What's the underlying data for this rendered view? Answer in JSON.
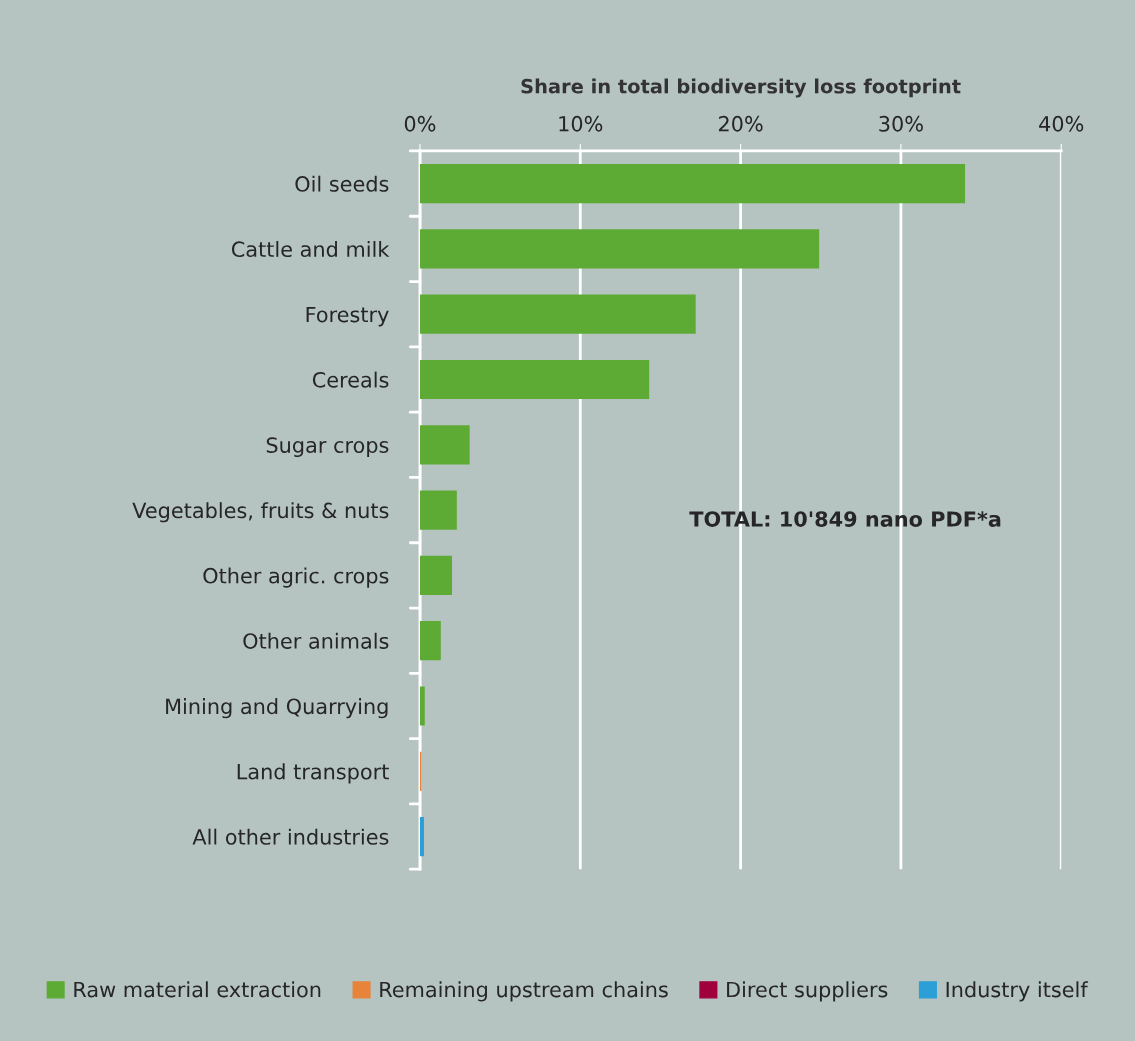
{
  "chart_data": {
    "type": "bar",
    "orientation": "horizontal",
    "xlabel": "Share in total biodiversity loss footprint",
    "categories": [
      "Oil seeds",
      "Cattle and milk",
      "Forestry",
      "Cereals",
      "Sugar crops",
      "Vegetables, fruits & nuts",
      "Other agric. crops",
      "Other animals",
      "Mining and Quarrying",
      "Land transport",
      "All other industries"
    ],
    "series": [
      {
        "name": "Raw material extraction",
        "color": "#5dab35",
        "values": [
          34.0,
          24.9,
          17.2,
          14.3,
          3.1,
          2.3,
          2.0,
          1.3,
          0.3,
          null,
          null
        ]
      },
      {
        "name": "Remaining upstream chains",
        "color": "#e8833a",
        "values": [
          null,
          null,
          null,
          null,
          null,
          null,
          null,
          null,
          null,
          0.1,
          null
        ]
      },
      {
        "name": "Direct suppliers",
        "color": "#a0003c",
        "values": [
          null,
          null,
          null,
          null,
          null,
          null,
          null,
          null,
          null,
          null,
          null
        ]
      },
      {
        "name": "Industry itself",
        "color": "#2b9fd6",
        "values": [
          null,
          null,
          null,
          null,
          null,
          null,
          null,
          null,
          null,
          null,
          0.25
        ]
      }
    ],
    "xlim": [
      0,
      40
    ],
    "xticks": [
      {
        "value": 0,
        "label": "0%"
      },
      {
        "value": 10,
        "label": "10%"
      },
      {
        "value": 20,
        "label": "20%"
      },
      {
        "value": 30,
        "label": "30%"
      },
      {
        "value": 40,
        "label": "40%"
      }
    ],
    "grid": "x",
    "legend": "bottom",
    "annotations": [
      "TOTAL: 10'849 nano PDF*a"
    ]
  }
}
